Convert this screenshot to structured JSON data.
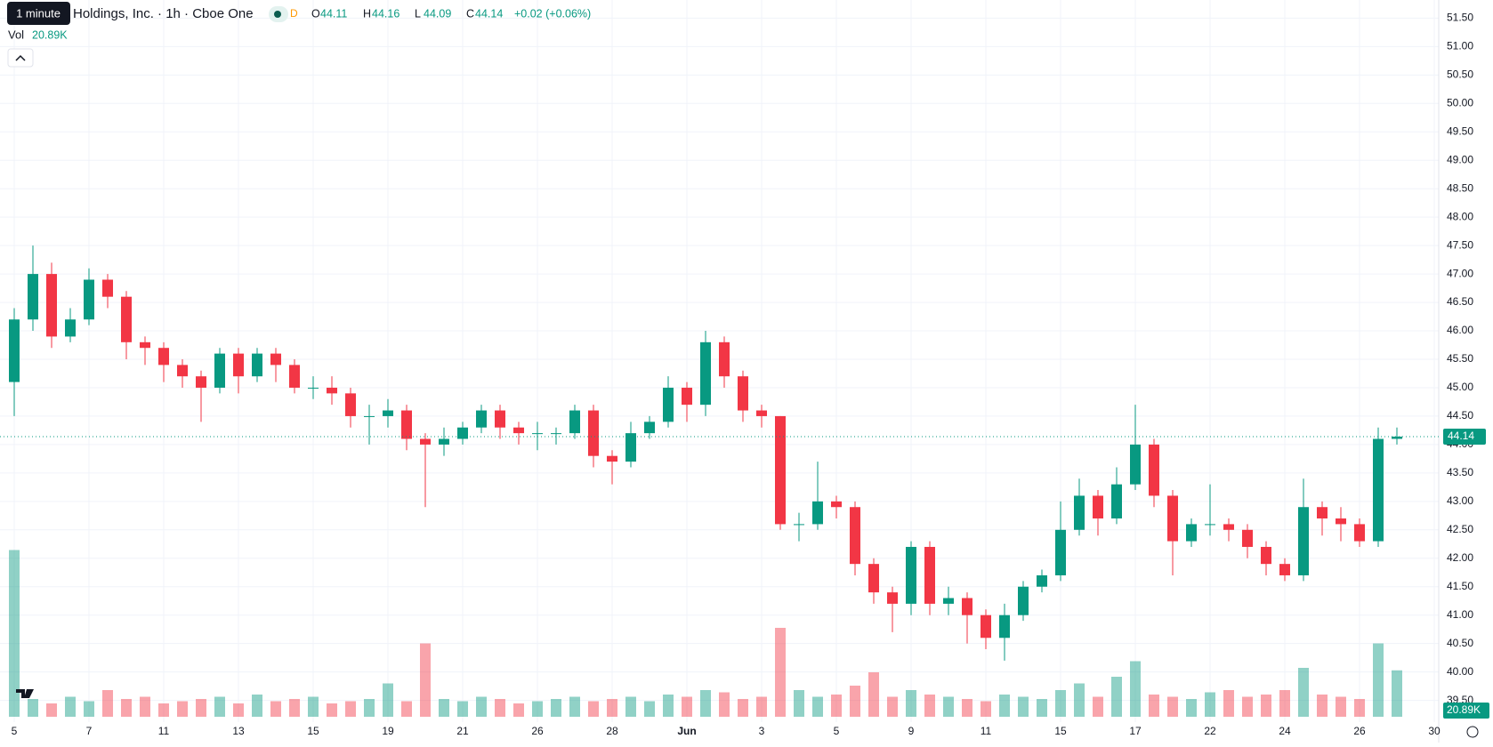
{
  "header": {
    "tooltip": "1 minute",
    "symbol": "Holdings, Inc. · 1h · Cboe One",
    "flag": "D",
    "ohlc": [
      {
        "label": "O",
        "value": 44.11
      },
      {
        "label": "H",
        "value": 44.16
      },
      {
        "label": "L",
        "value": 44.09
      },
      {
        "label": "C",
        "value": 44.14
      }
    ],
    "change": "+0.02 (+0.06%)",
    "vol_label": "Vol",
    "vol_value": "20.89K"
  },
  "chart_data": {
    "type": "candlestick",
    "up_color": "#089981",
    "down_color": "#f23645",
    "grid": true,
    "categories": [
      "5",
      null,
      null,
      null,
      "7",
      null,
      null,
      null,
      "11",
      null,
      null,
      null,
      "13",
      null,
      null,
      null,
      "15",
      null,
      null,
      null,
      "19",
      null,
      null,
      null,
      "21",
      null,
      null,
      null,
      "26",
      null,
      null,
      null,
      "28",
      null,
      null,
      null,
      "Jun",
      null,
      null,
      null,
      "3",
      null,
      null,
      null,
      "5",
      null,
      null,
      null,
      "9",
      null,
      null,
      null,
      "11",
      null,
      null,
      null,
      "15",
      null,
      null,
      null,
      "17",
      null,
      null,
      null,
      "22",
      null,
      null,
      null,
      "24",
      null,
      null,
      null,
      "26",
      null,
      null,
      null,
      "30"
    ],
    "open": [
      45.1,
      46.2,
      47.0,
      45.9,
      46.2,
      46.9,
      46.6,
      45.8,
      45.7,
      45.4,
      45.2,
      45.0,
      45.6,
      45.2,
      45.6,
      45.4,
      45.0,
      45.0,
      44.9,
      44.5,
      44.5,
      44.6,
      44.1,
      44.0,
      44.1,
      44.3,
      44.6,
      44.3,
      44.2,
      44.2,
      44.2,
      44.6,
      43.8,
      43.7,
      44.2,
      44.4,
      45.0,
      44.7,
      45.8,
      45.2,
      44.6,
      44.5,
      42.6,
      42.6,
      43.0,
      42.9,
      41.9,
      41.4,
      41.2,
      42.2,
      41.2,
      41.3,
      41.0,
      40.6,
      41.0,
      41.5,
      41.7,
      42.5,
      43.1,
      42.7,
      43.3,
      44.0,
      43.1,
      42.3,
      42.6,
      42.6,
      42.5,
      42.2,
      41.9,
      41.7,
      42.9,
      42.7,
      42.6,
      42.3,
      44.1,
      null,
      null
    ],
    "high": [
      46.4,
      47.5,
      47.2,
      46.4,
      47.1,
      47.0,
      46.7,
      45.9,
      45.8,
      45.5,
      45.3,
      45.7,
      45.7,
      45.7,
      45.7,
      45.5,
      45.2,
      45.2,
      45.0,
      44.7,
      44.8,
      44.7,
      44.2,
      44.3,
      44.4,
      44.7,
      44.7,
      44.4,
      44.4,
      44.3,
      44.7,
      44.7,
      43.9,
      44.4,
      44.5,
      45.2,
      45.1,
      46.0,
      45.9,
      45.3,
      44.7,
      44.5,
      42.8,
      43.7,
      43.1,
      43.0,
      42.0,
      41.5,
      42.3,
      42.3,
      41.5,
      41.4,
      41.1,
      41.2,
      41.6,
      41.8,
      43.0,
      43.4,
      43.2,
      43.6,
      44.7,
      44.1,
      43.2,
      42.7,
      43.3,
      42.7,
      42.6,
      42.3,
      42.0,
      43.4,
      43.0,
      42.9,
      42.7,
      44.3,
      44.3,
      null,
      null
    ],
    "low": [
      44.5,
      46.0,
      45.7,
      45.8,
      46.1,
      46.4,
      45.5,
      45.4,
      45.1,
      45.0,
      44.4,
      44.9,
      44.9,
      45.1,
      45.1,
      44.9,
      44.8,
      44.7,
      44.3,
      44.0,
      44.3,
      43.9,
      42.9,
      43.8,
      44.0,
      44.2,
      44.1,
      44.0,
      43.9,
      44.0,
      44.1,
      43.6,
      43.3,
      43.6,
      44.1,
      44.3,
      44.4,
      44.5,
      45.0,
      44.4,
      44.3,
      42.5,
      42.3,
      42.5,
      42.7,
      41.7,
      41.2,
      40.7,
      41.0,
      41.0,
      41.0,
      40.5,
      40.4,
      40.2,
      40.9,
      41.4,
      41.6,
      42.4,
      42.4,
      42.6,
      43.2,
      42.9,
      41.7,
      42.2,
      42.4,
      42.3,
      42.0,
      41.7,
      41.6,
      41.6,
      42.4,
      42.3,
      42.2,
      42.2,
      44.0,
      null,
      null
    ],
    "close": [
      46.2,
      47.0,
      45.9,
      46.2,
      46.9,
      46.6,
      45.8,
      45.7,
      45.4,
      45.2,
      45.0,
      45.6,
      45.2,
      45.6,
      45.4,
      45.0,
      45.0,
      44.9,
      44.5,
      44.5,
      44.6,
      44.1,
      44.0,
      44.1,
      44.3,
      44.6,
      44.3,
      44.2,
      44.2,
      44.2,
      44.6,
      43.8,
      43.7,
      44.2,
      44.4,
      45.0,
      44.7,
      45.8,
      45.2,
      44.6,
      44.5,
      42.6,
      42.6,
      43.0,
      42.9,
      41.9,
      41.4,
      41.2,
      42.2,
      41.2,
      41.3,
      41.0,
      40.6,
      41.0,
      41.5,
      41.7,
      42.5,
      43.1,
      42.7,
      43.3,
      44.0,
      43.1,
      42.3,
      42.6,
      42.6,
      42.5,
      42.2,
      41.9,
      41.7,
      42.9,
      42.7,
      42.6,
      42.3,
      44.1,
      44.14,
      null,
      null
    ],
    "volume": [
      75,
      8,
      6,
      9,
      7,
      12,
      8,
      9,
      6,
      7,
      8,
      9,
      6,
      10,
      7,
      8,
      9,
      6,
      7,
      8,
      15,
      7,
      33,
      8,
      7,
      9,
      8,
      6,
      7,
      8,
      9,
      7,
      8,
      9,
      7,
      10,
      9,
      12,
      11,
      8,
      9,
      40,
      12,
      9,
      10,
      14,
      20,
      9,
      12,
      10,
      9,
      8,
      7,
      10,
      9,
      8,
      12,
      15,
      9,
      18,
      25,
      10,
      9,
      8,
      11,
      12,
      9,
      10,
      12,
      22,
      10,
      9,
      8,
      33,
      20.89,
      null,
      null
    ],
    "volume_ylim": [
      0,
      80
    ],
    "ylim": [
      39.5,
      51.5
    ],
    "yticks": [
      {
        "value": 39.5,
        "label": "39.50"
      },
      {
        "value": 40,
        "label": "40.00"
      },
      {
        "value": 40.5,
        "label": "40.50"
      },
      {
        "value": 41,
        "label": "41.00"
      },
      {
        "value": 41.5,
        "label": "41.50"
      },
      {
        "value": 42,
        "label": "42.00"
      },
      {
        "value": 42.5,
        "label": "42.50"
      },
      {
        "value": 43,
        "label": "43.00"
      },
      {
        "value": 43.5,
        "label": "43.50"
      },
      {
        "value": 44,
        "label": "44.00"
      },
      {
        "value": 44.5,
        "label": "44.50"
      },
      {
        "value": 45,
        "label": "45.00"
      },
      {
        "value": 45.5,
        "label": "45.50"
      },
      {
        "value": 46,
        "label": "46.00"
      },
      {
        "value": 46.5,
        "label": "46.50"
      },
      {
        "value": 47,
        "label": "47.00"
      },
      {
        "value": 47.5,
        "label": "47.50"
      },
      {
        "value": 48,
        "label": "48.00"
      },
      {
        "value": 48.5,
        "label": "48.50"
      },
      {
        "value": 49,
        "label": "49.00"
      },
      {
        "value": 49.5,
        "label": "49.50"
      },
      {
        "value": 50,
        "label": "50.00"
      },
      {
        "value": 50.5,
        "label": "50.50"
      },
      {
        "value": 51,
        "label": "51.00"
      },
      {
        "value": 51.5,
        "label": "51.50"
      }
    ],
    "last_price": 44.14
  }
}
